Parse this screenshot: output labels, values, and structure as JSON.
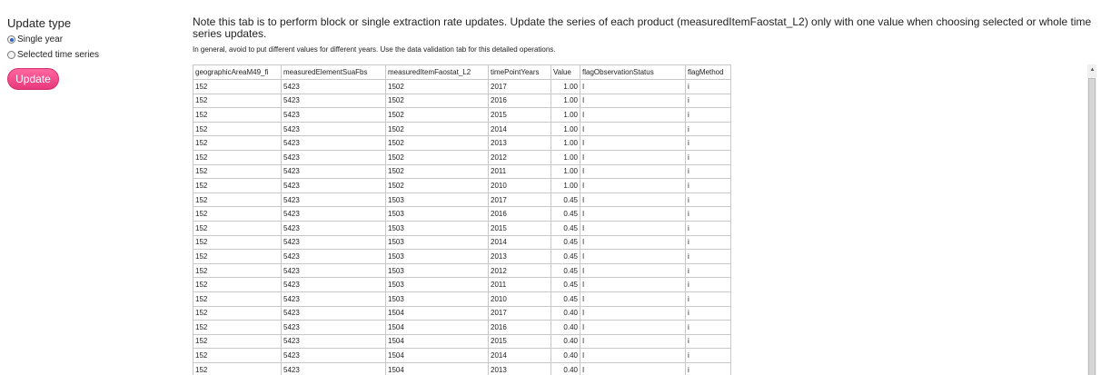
{
  "sidebar": {
    "heading": "Update type",
    "options": [
      {
        "label": "Single year",
        "checked": true
      },
      {
        "label": "Selected time series",
        "checked": false
      }
    ],
    "update_button": "Update"
  },
  "main": {
    "note": "Note this tab is to perform block or single extraction rate updates. Update the series of each product (measuredItemFaostat_L2) only with one value when choosing selected or whole time series updates.",
    "subnote": "In general, avoid to put different values for different years. Use the data validation tab for this detailed operations.",
    "table": {
      "columns": [
        "geographicAreaM49_fi",
        "measuredElementSuaFbs",
        "measuredItemFaostat_L2",
        "timePointYears",
        "Value",
        "flagObservationStatus",
        "flagMethod"
      ],
      "rows": [
        [
          "152",
          "5423",
          "1502",
          "2017",
          "1.00",
          "I",
          "i"
        ],
        [
          "152",
          "5423",
          "1502",
          "2016",
          "1.00",
          "I",
          "i"
        ],
        [
          "152",
          "5423",
          "1502",
          "2015",
          "1.00",
          "I",
          "i"
        ],
        [
          "152",
          "5423",
          "1502",
          "2014",
          "1.00",
          "I",
          "i"
        ],
        [
          "152",
          "5423",
          "1502",
          "2013",
          "1.00",
          "I",
          "i"
        ],
        [
          "152",
          "5423",
          "1502",
          "2012",
          "1.00",
          "I",
          "i"
        ],
        [
          "152",
          "5423",
          "1502",
          "2011",
          "1.00",
          "I",
          "i"
        ],
        [
          "152",
          "5423",
          "1502",
          "2010",
          "1.00",
          "I",
          "i"
        ],
        [
          "152",
          "5423",
          "1503",
          "2017",
          "0.45",
          "I",
          "i"
        ],
        [
          "152",
          "5423",
          "1503",
          "2016",
          "0.45",
          "I",
          "i"
        ],
        [
          "152",
          "5423",
          "1503",
          "2015",
          "0.45",
          "I",
          "i"
        ],
        [
          "152",
          "5423",
          "1503",
          "2014",
          "0.45",
          "I",
          "i"
        ],
        [
          "152",
          "5423",
          "1503",
          "2013",
          "0.45",
          "I",
          "i"
        ],
        [
          "152",
          "5423",
          "1503",
          "2012",
          "0.45",
          "I",
          "i"
        ],
        [
          "152",
          "5423",
          "1503",
          "2011",
          "0.45",
          "I",
          "i"
        ],
        [
          "152",
          "5423",
          "1503",
          "2010",
          "0.45",
          "I",
          "i"
        ],
        [
          "152",
          "5423",
          "1504",
          "2017",
          "0.40",
          "I",
          "i"
        ],
        [
          "152",
          "5423",
          "1504",
          "2016",
          "0.40",
          "I",
          "i"
        ],
        [
          "152",
          "5423",
          "1504",
          "2015",
          "0.40",
          "I",
          "i"
        ],
        [
          "152",
          "5423",
          "1504",
          "2014",
          "0.40",
          "I",
          "i"
        ],
        [
          "152",
          "5423",
          "1504",
          "2013",
          "0.40",
          "I",
          "i"
        ]
      ]
    }
  },
  "icons": {
    "scroll_up": "triangle-up-icon"
  }
}
